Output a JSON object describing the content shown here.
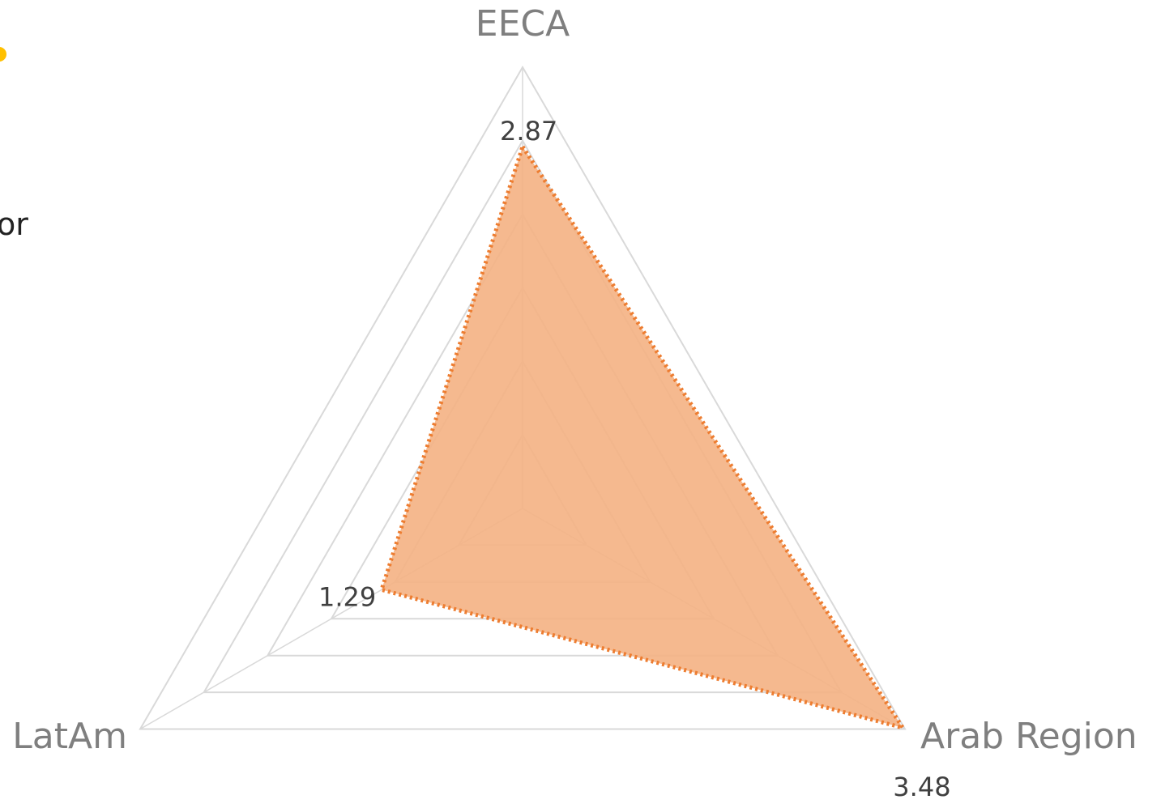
{
  "chart_data": {
    "type": "radar",
    "title": "",
    "categories": [
      "EECA",
      "Arab Region",
      "LatAm"
    ],
    "series": [
      {
        "values": [
          2.87,
          3.48,
          1.29
        ],
        "data_labels": [
          "2.87",
          "3.48",
          "1.29"
        ],
        "fill_color": "#f4b183",
        "line_color": "#ed7d31",
        "line_style": "dotted"
      }
    ],
    "rmax": 3.5,
    "rings": 6,
    "grid": true,
    "legend": "none",
    "grid_color": "#d9d9d9",
    "label_color": "#7f7f7f"
  },
  "edge": {
    "left_text_fragment": "or",
    "bullet_color": "#ffc000"
  }
}
